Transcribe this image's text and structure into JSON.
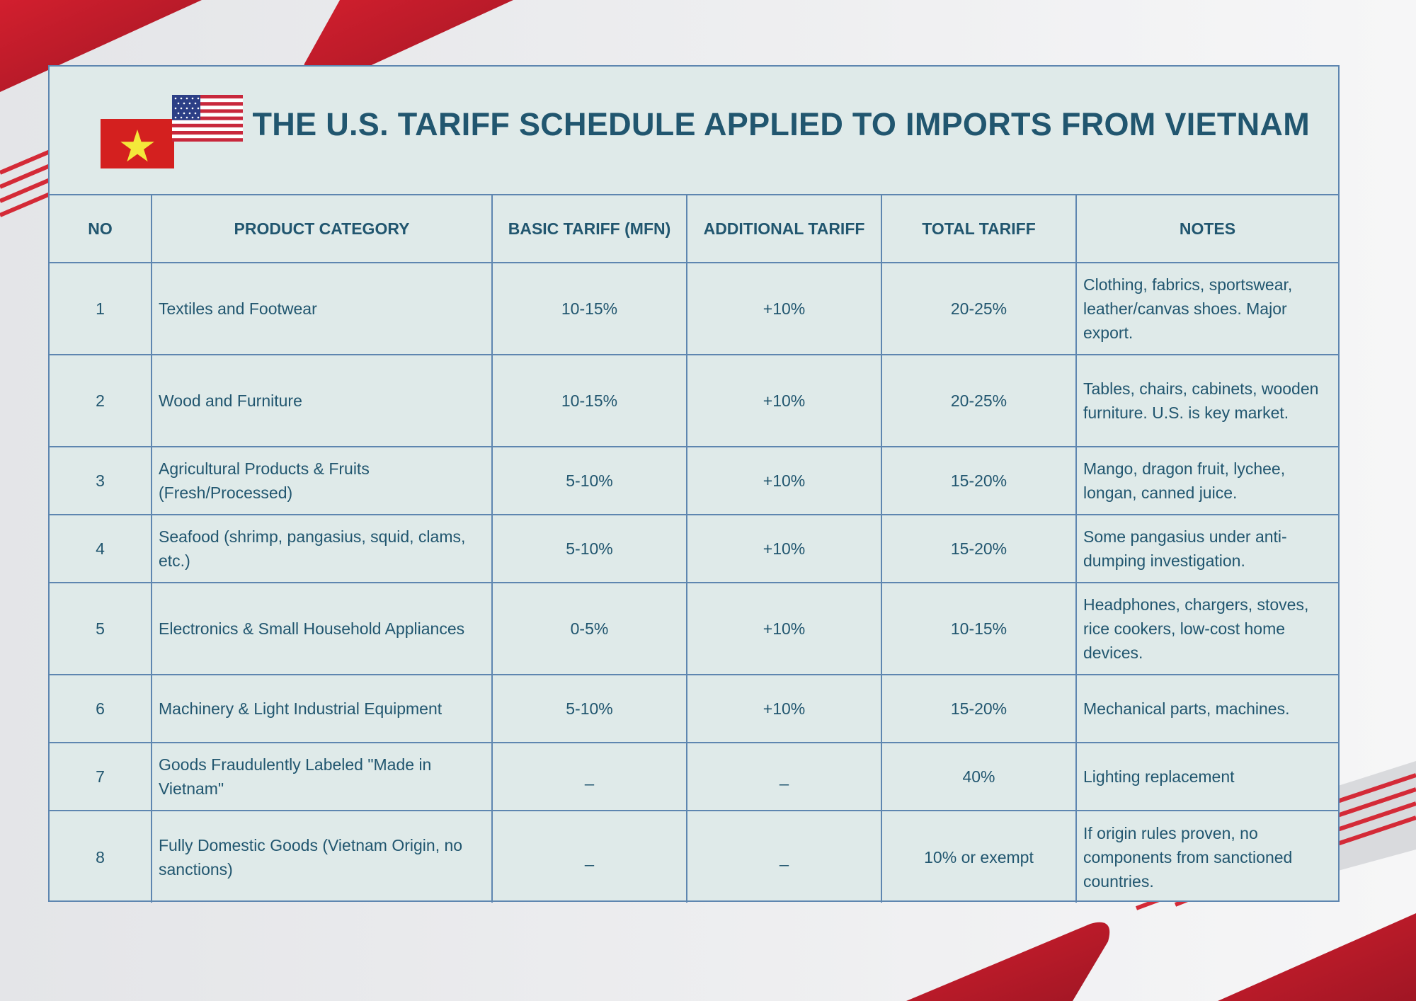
{
  "title": "THE U.S. TARIFF SCHEDULE APPLIED TO IMPORTS FROM VIETNAM",
  "flags": [
    "vietnam-flag-icon",
    "usa-flag-icon"
  ],
  "colors": {
    "accent_red": "#c31a2a",
    "title_blue": "#21566f",
    "card_bg": "#dfeae9",
    "border": "#5e86b0"
  },
  "table": {
    "headers": [
      "NO",
      "PRODUCT CATEGORY",
      "BASIC TARIFF (MFN)",
      "ADDITIONAL TARIFF",
      "TOTAL TARIFF",
      "NOTES"
    ],
    "rows": [
      {
        "no": "1",
        "category": "Textiles and Footwear",
        "basic": "10-15%",
        "additional": "+10%",
        "total": "20-25%",
        "notes": "Clothing, fabrics, sportswear, leather/canvas shoes. Major export."
      },
      {
        "no": "2",
        "category": "Wood and Furniture",
        "basic": "10-15%",
        "additional": "+10%",
        "total": "20-25%",
        "notes": "Tables, chairs, cabinets, wooden furniture. U.S. is key market."
      },
      {
        "no": "3",
        "category": "Agricultural Products & Fruits (Fresh/Processed)",
        "basic": "5-10%",
        "additional": "+10%",
        "total": "15-20%",
        "notes": "Mango, dragon fruit, lychee, longan, canned juice."
      },
      {
        "no": "4",
        "category": "Seafood (shrimp, pangasius, squid, clams, etc.)",
        "basic": "5-10%",
        "additional": "+10%",
        "total": "15-20%",
        "notes": "Some pangasius under anti-dumping investigation."
      },
      {
        "no": "5",
        "category": "Electronics & Small Household Appliances",
        "basic": "0-5%",
        "additional": "+10%",
        "total": "10-15%",
        "notes": "Headphones, chargers, stoves, rice cookers, low-cost home devices."
      },
      {
        "no": "6",
        "category": "Machinery & Light Industrial Equipment",
        "basic": "5-10%",
        "additional": "+10%",
        "total": "15-20%",
        "notes": "Mechanical parts, machines."
      },
      {
        "no": "7",
        "category": "Goods Fraudulently Labeled \"Made in Vietnam\"",
        "basic": "_",
        "additional": "_",
        "total": "40%",
        "notes": "Lighting replacement"
      },
      {
        "no": "8",
        "category": "Fully Domestic Goods (Vietnam Origin, no sanctions)",
        "basic": "_",
        "additional": "_",
        "total": "10% or exempt",
        "notes": "If origin rules proven, no components from sanctioned countries."
      }
    ]
  }
}
